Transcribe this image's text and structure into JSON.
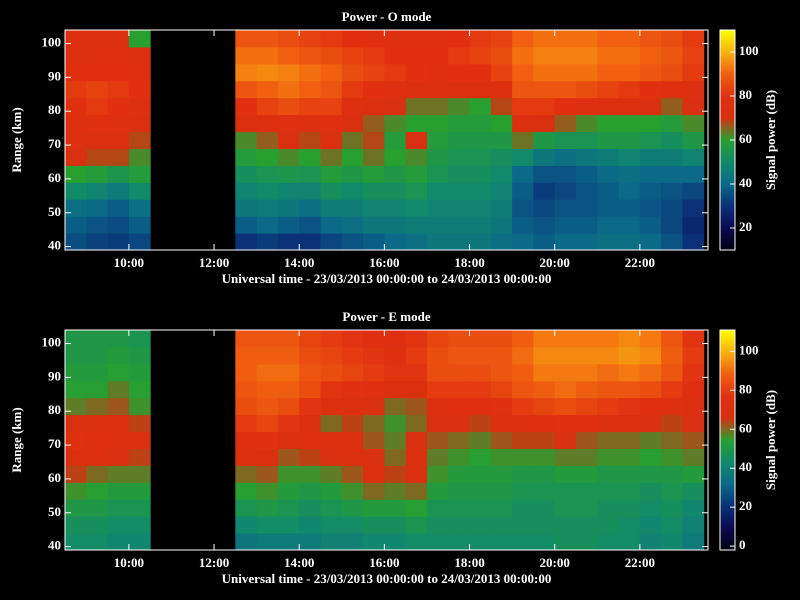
{
  "chart_data": [
    {
      "type": "heatmap",
      "title": "Power - O mode",
      "xlabel": "Universal time - 23/03/2013 00:00:00 to 24/03/2013 00:00:00",
      "ylabel": "Range (km)",
      "colorbar_label": "Signal power (dB)",
      "x": [
        8.75,
        9.25,
        9.75,
        10.25,
        10.75,
        11.25,
        11.75,
        12.25,
        12.75,
        13.25,
        13.75,
        14.25,
        14.75,
        15.25,
        15.75,
        16.25,
        16.75,
        17.25,
        17.75,
        18.25,
        18.75,
        19.25,
        19.75,
        20.25,
        20.75,
        21.25,
        21.75,
        22.25,
        22.75,
        23.25
      ],
      "y": [
        41.5,
        46.5,
        51.5,
        56.5,
        61.5,
        66.5,
        71.5,
        76.5,
        81.5,
        86.5,
        91.5,
        96.5,
        101.5
      ],
      "values": [
        [
          35,
          38,
          42,
          50,
          60,
          70,
          75,
          78,
          80,
          82,
          80,
          78,
          76
        ],
        [
          33,
          36,
          40,
          48,
          58,
          68,
          74,
          78,
          82,
          84,
          80,
          78,
          76
        ],
        [
          32,
          35,
          38,
          45,
          55,
          68,
          72,
          76,
          80,
          82,
          80,
          78,
          76
        ],
        [
          34,
          38,
          42,
          50,
          58,
          62,
          68,
          72,
          76,
          80,
          78,
          76,
          60
        ],
        null,
        null,
        null,
        null,
        [
          30,
          38,
          44,
          48,
          52,
          58,
          62,
          72,
          80,
          88,
          94,
          92,
          88
        ],
        [
          32,
          40,
          45,
          50,
          54,
          60,
          66,
          75,
          84,
          90,
          95,
          92,
          88
        ],
        [
          30,
          38,
          44,
          48,
          55,
          62,
          70,
          78,
          86,
          92,
          94,
          90,
          86
        ],
        [
          30,
          36,
          42,
          48,
          54,
          60,
          68,
          76,
          84,
          90,
          92,
          88,
          84
        ],
        [
          34,
          40,
          46,
          52,
          58,
          64,
          72,
          78,
          84,
          88,
          90,
          86,
          82
        ],
        [
          36,
          42,
          46,
          50,
          56,
          60,
          64,
          70,
          76,
          82,
          86,
          84,
          80
        ],
        [
          38,
          44,
          48,
          52,
          58,
          64,
          68,
          66,
          72,
          80,
          84,
          82,
          80
        ],
        [
          40,
          44,
          48,
          52,
          56,
          60,
          58,
          62,
          70,
          78,
          82,
          80,
          78
        ],
        [
          42,
          46,
          50,
          54,
          58,
          62,
          70,
          60,
          64,
          74,
          80,
          80,
          78
        ],
        [
          44,
          46,
          48,
          50,
          54,
          56,
          58,
          60,
          64,
          72,
          78,
          80,
          78
        ],
        [
          44,
          46,
          48,
          50,
          52,
          54,
          56,
          58,
          62,
          72,
          80,
          82,
          80
        ],
        [
          44,
          46,
          48,
          50,
          52,
          54,
          56,
          58,
          60,
          72,
          80,
          84,
          82
        ],
        [
          42,
          44,
          46,
          48,
          50,
          52,
          56,
          60,
          68,
          78,
          84,
          86,
          84
        ],
        [
          40,
          38,
          36,
          38,
          40,
          50,
          64,
          74,
          82,
          88,
          90,
          92,
          90
        ],
        [
          38,
          36,
          34,
          32,
          36,
          44,
          56,
          70,
          82,
          88,
          92,
          94,
          92
        ],
        [
          40,
          38,
          36,
          34,
          36,
          42,
          54,
          66,
          80,
          88,
          92,
          94,
          92
        ],
        [
          40,
          38,
          36,
          36,
          38,
          44,
          54,
          62,
          76,
          86,
          92,
          94,
          92
        ],
        [
          42,
          40,
          38,
          38,
          40,
          46,
          56,
          60,
          74,
          84,
          90,
          92,
          90
        ],
        [
          42,
          40,
          38,
          40,
          42,
          48,
          56,
          60,
          72,
          82,
          90,
          92,
          90
        ],
        [
          40,
          38,
          36,
          38,
          40,
          46,
          54,
          60,
          70,
          80,
          88,
          90,
          88
        ],
        [
          36,
          34,
          34,
          36,
          40,
          46,
          52,
          58,
          66,
          78,
          86,
          88,
          86
        ],
        [
          30,
          28,
          30,
          34,
          40,
          48,
          56,
          62,
          70,
          76,
          82,
          84,
          82
        ]
      ],
      "xlim": [
        8.5,
        23.6
      ],
      "ylim": [
        39,
        104
      ],
      "xticks": [
        {
          "value": 10,
          "label": "10:00"
        },
        {
          "value": 12,
          "label": "12:00"
        },
        {
          "value": 14,
          "label": "14:00"
        },
        {
          "value": 16,
          "label": "16:00"
        },
        {
          "value": 18,
          "label": "18:00"
        },
        {
          "value": 20,
          "label": "20:00"
        },
        {
          "value": 22,
          "label": "22:00"
        }
      ],
      "yticks": [
        40,
        50,
        60,
        70,
        80,
        90,
        100
      ],
      "clim": [
        10,
        110
      ],
      "cticks": [
        20,
        40,
        60,
        80,
        100
      ],
      "colormap": [
        "#000010",
        "#0a0a50",
        "#0a3078",
        "#0a6a88",
        "#128a6a",
        "#28a030",
        "#d83010",
        "#e03010",
        "#f06010",
        "#f8b010",
        "#ffff00"
      ]
    },
    {
      "type": "heatmap",
      "title": "Power - E mode",
      "xlabel": "Universal time - 23/03/2013 00:00:00 to 24/03/2013 00:00:00",
      "ylabel": "Range (km)",
      "colorbar_label": "Signal power (dB)",
      "x": [
        8.75,
        9.25,
        9.75,
        10.25,
        10.75,
        11.25,
        11.75,
        12.25,
        12.75,
        13.25,
        13.75,
        14.25,
        14.75,
        15.25,
        15.75,
        16.25,
        16.75,
        17.25,
        17.75,
        18.25,
        18.75,
        19.25,
        19.75,
        20.25,
        20.75,
        21.25,
        21.75,
        22.25,
        22.75,
        23.25
      ],
      "y": [
        41.5,
        46.5,
        51.5,
        56.5,
        61.5,
        66.5,
        71.5,
        76.5,
        81.5,
        86.5,
        91.5,
        96.5,
        101.5
      ],
      "values": [
        [
          44,
          46,
          50,
          56,
          64,
          70,
          76,
          66,
          58,
          54,
          52,
          50,
          50
        ],
        [
          44,
          46,
          50,
          54,
          60,
          68,
          74,
          70,
          60,
          54,
          52,
          50,
          50
        ],
        [
          42,
          44,
          48,
          52,
          58,
          66,
          70,
          68,
          62,
          58,
          54,
          52,
          50
        ],
        [
          42,
          44,
          48,
          52,
          58,
          64,
          68,
          64,
          56,
          54,
          52,
          50,
          48
        ],
        null,
        null,
        null,
        null,
        [
          36,
          42,
          48,
          54,
          60,
          68,
          74,
          80,
          84,
          86,
          88,
          88,
          86
        ],
        [
          38,
          44,
          50,
          56,
          62,
          70,
          76,
          82,
          86,
          88,
          90,
          88,
          86
        ],
        [
          38,
          44,
          48,
          52,
          56,
          62,
          70,
          78,
          84,
          88,
          90,
          88,
          86
        ],
        [
          38,
          42,
          46,
          50,
          56,
          64,
          74,
          70,
          78,
          84,
          86,
          84,
          82
        ],
        [
          40,
          44,
          48,
          52,
          58,
          66,
          72,
          60,
          70,
          78,
          84,
          82,
          80
        ],
        [
          40,
          44,
          50,
          56,
          62,
          68,
          70,
          64,
          68,
          76,
          82,
          80,
          78
        ],
        [
          42,
          46,
          52,
          60,
          68,
          66,
          62,
          60,
          66,
          74,
          80,
          78,
          76
        ],
        [
          42,
          46,
          52,
          58,
          64,
          60,
          58,
          56,
          60,
          70,
          78,
          76,
          74
        ],
        [
          44,
          48,
          54,
          60,
          66,
          68,
          66,
          60,
          62,
          70,
          78,
          80,
          78
        ],
        [
          44,
          46,
          48,
          52,
          56,
          58,
          62,
          66,
          72,
          80,
          84,
          84,
          82
        ],
        [
          44,
          46,
          48,
          50,
          52,
          56,
          60,
          66,
          74,
          80,
          84,
          86,
          84
        ],
        [
          44,
          46,
          48,
          50,
          52,
          54,
          58,
          64,
          74,
          80,
          84,
          86,
          84
        ],
        [
          44,
          46,
          48,
          50,
          52,
          56,
          62,
          68,
          76,
          82,
          86,
          86,
          84
        ],
        [
          44,
          46,
          46,
          48,
          50,
          56,
          64,
          72,
          80,
          86,
          88,
          90,
          88
        ],
        [
          44,
          46,
          46,
          48,
          50,
          56,
          64,
          74,
          82,
          88,
          92,
          94,
          92
        ],
        [
          46,
          46,
          48,
          48,
          52,
          58,
          66,
          76,
          84,
          90,
          92,
          94,
          92
        ],
        [
          46,
          46,
          48,
          48,
          52,
          58,
          62,
          74,
          82,
          88,
          92,
          94,
          92
        ],
        [
          44,
          46,
          46,
          48,
          50,
          56,
          60,
          70,
          80,
          86,
          90,
          94,
          92
        ],
        [
          44,
          44,
          46,
          48,
          50,
          56,
          60,
          68,
          78,
          86,
          92,
          96,
          94
        ],
        [
          40,
          42,
          44,
          46,
          50,
          54,
          58,
          66,
          74,
          84,
          90,
          94,
          92
        ],
        [
          42,
          44,
          46,
          48,
          50,
          56,
          60,
          64,
          72,
          80,
          86,
          88,
          86
        ],
        [
          38,
          40,
          42,
          46,
          52,
          58,
          62,
          66,
          70,
          74,
          78,
          80,
          78
        ]
      ],
      "xlim": [
        8.5,
        23.6
      ],
      "ylim": [
        39,
        104
      ],
      "xticks": [
        {
          "value": 10,
          "label": "10:00"
        },
        {
          "value": 12,
          "label": "12:00"
        },
        {
          "value": 14,
          "label": "14:00"
        },
        {
          "value": 16,
          "label": "16:00"
        },
        {
          "value": 18,
          "label": "18:00"
        },
        {
          "value": 20,
          "label": "20:00"
        },
        {
          "value": 22,
          "label": "22:00"
        }
      ],
      "yticks": [
        40,
        50,
        60,
        70,
        80,
        90,
        100
      ],
      "clim": [
        -2,
        111
      ],
      "cticks": [
        0,
        20,
        40,
        60,
        80,
        100
      ],
      "colormap": [
        "#000010",
        "#0a0a50",
        "#0a3078",
        "#0a6a88",
        "#128a6a",
        "#28a030",
        "#d83010",
        "#e03010",
        "#f06010",
        "#f8b010",
        "#ffff00"
      ]
    }
  ]
}
